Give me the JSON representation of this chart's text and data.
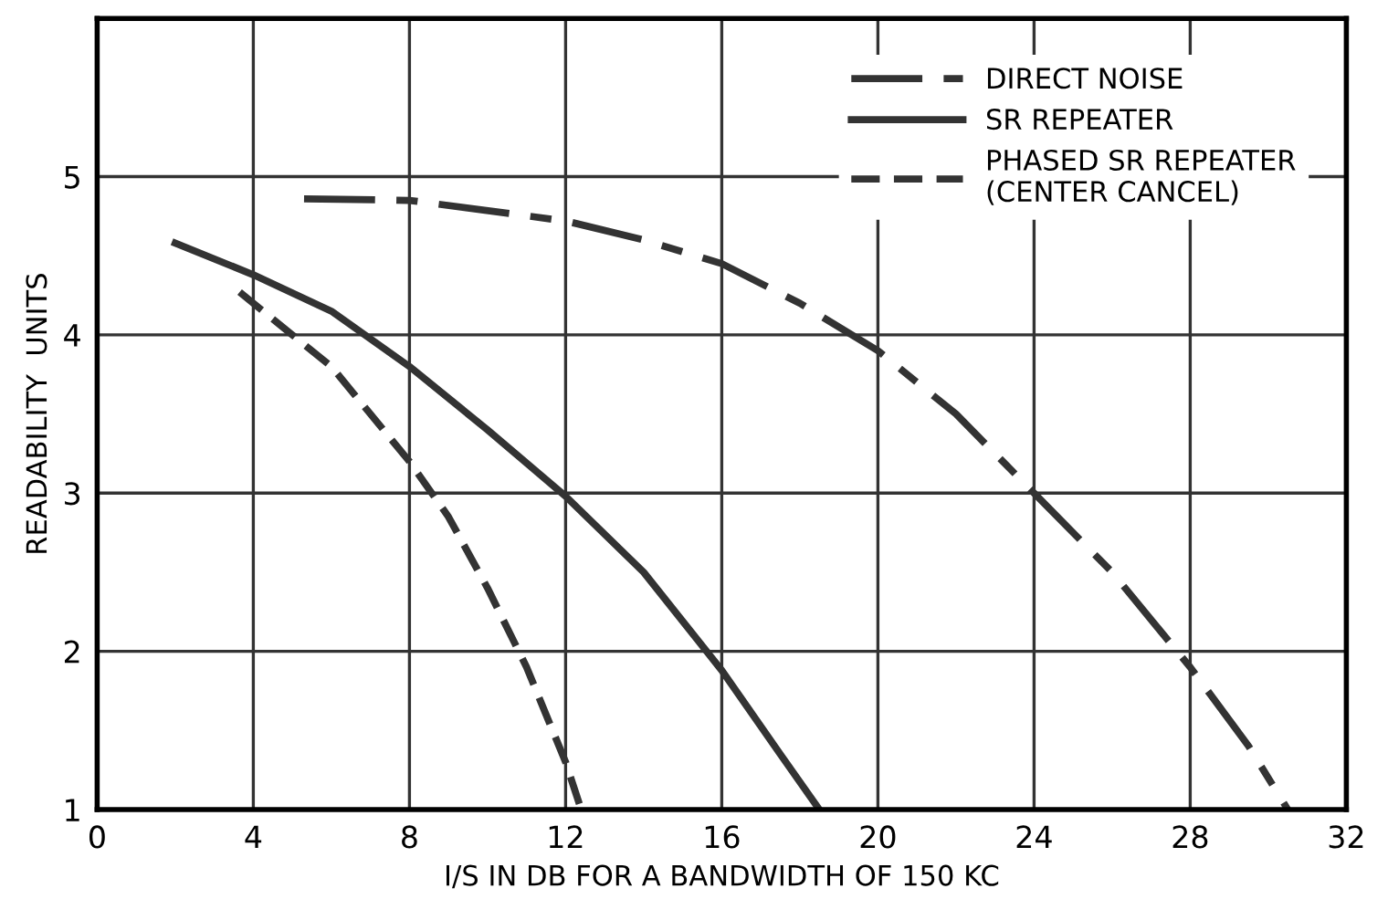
{
  "chart_data": {
    "type": "line",
    "xlabel": "I/S IN DB FOR A BANDWIDTH OF 150 KC",
    "ylabel": "READABILITY  UNITS",
    "xlim": [
      0,
      32
    ],
    "xticks": [
      0,
      4,
      8,
      12,
      16,
      20,
      24,
      28,
      32
    ],
    "ylim": [
      1,
      6
    ],
    "yticks": [
      1,
      2,
      3,
      4,
      5
    ],
    "grid": true,
    "legend": "top right",
    "marker": "none",
    "series": [
      {
        "name": "DIRECT NOISE",
        "color": "#333333",
        "line_style": "dashdot",
        "x": [
          5.3,
          8,
          12,
          14,
          16,
          18,
          20,
          22,
          24,
          26,
          28,
          29.5,
          30.5
        ],
        "values": [
          4.86,
          4.85,
          4.72,
          4.6,
          4.45,
          4.2,
          3.9,
          3.5,
          3.0,
          2.5,
          1.9,
          1.4,
          1.0
        ]
      },
      {
        "name": "SR REPEATER",
        "color": "#333333",
        "line_style": "solid",
        "x": [
          2,
          4,
          6,
          8,
          10,
          12,
          14,
          16,
          17.5,
          18.5
        ],
        "values": [
          4.58,
          4.38,
          4.15,
          3.8,
          3.4,
          2.98,
          2.5,
          1.88,
          1.35,
          1.0
        ]
      },
      {
        "name": "PHASED SR REPEATER\n(CENTER CANCEL)",
        "color": "#333333",
        "line_style": "dashed",
        "x": [
          3.65,
          5,
          6,
          8,
          9,
          10,
          11,
          12,
          12.4
        ],
        "values": [
          4.27,
          4.0,
          3.8,
          3.2,
          2.85,
          2.4,
          1.9,
          1.3,
          1.0
        ]
      }
    ]
  }
}
